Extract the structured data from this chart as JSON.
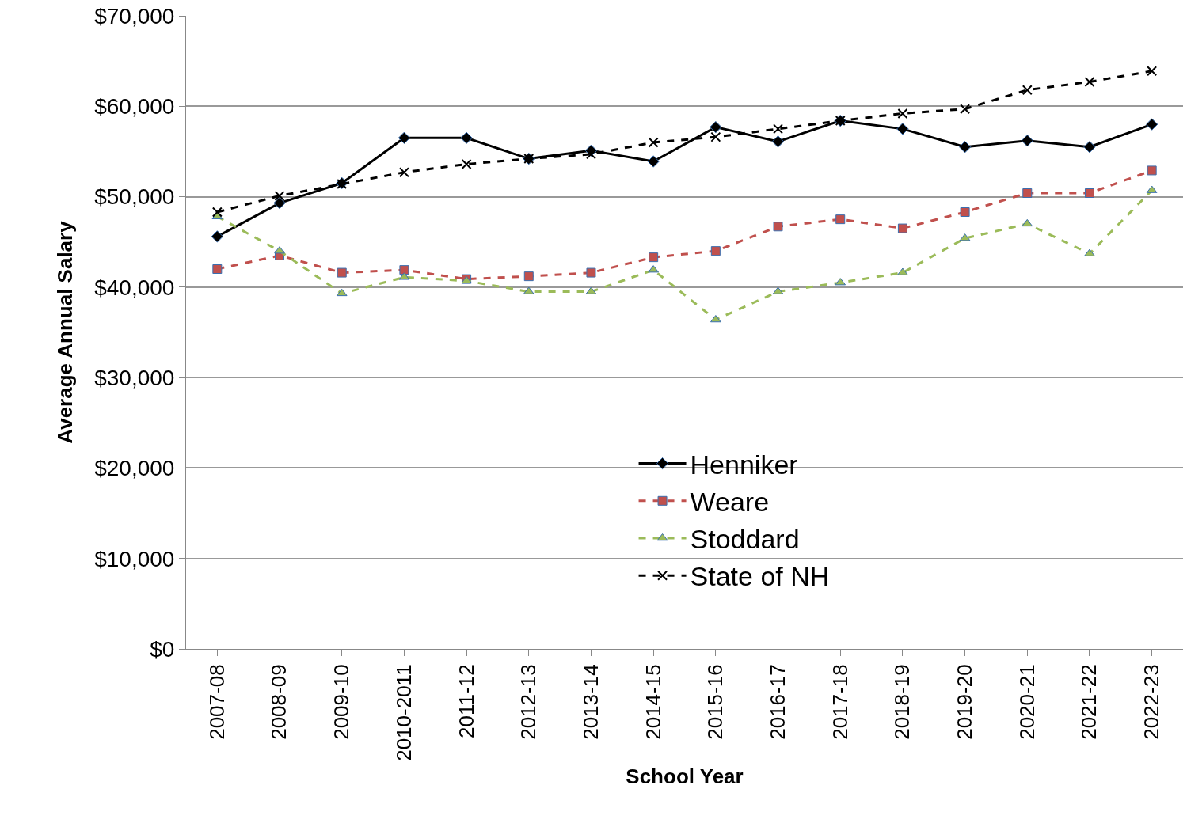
{
  "chart_data": {
    "type": "line",
    "xlabel": "School Year",
    "ylabel": "Average Annual Salary",
    "categories": [
      "2007-08",
      "2008-09",
      "2009-10",
      "2010-2011",
      "2011-12",
      "2012-13",
      "2013-14",
      "2014-15",
      "2015-16",
      "2016-17",
      "2017-18",
      "2018-19",
      "2019-20",
      "2020-21",
      "2021-22",
      "2022-23"
    ],
    "series": [
      {
        "name": "Henniker",
        "color": "#000000",
        "marker": "diamond",
        "line_style": "solid",
        "values": [
          45600,
          49300,
          51500,
          56500,
          56500,
          54200,
          55100,
          53900,
          57700,
          56100,
          58400,
          57500,
          55500,
          56200,
          55500,
          58000
        ]
      },
      {
        "name": "Weare",
        "color": "#c0504d",
        "marker": "square",
        "line_style": "dashed",
        "values": [
          42000,
          43500,
          41600,
          41900,
          40900,
          41200,
          41600,
          43300,
          44000,
          46700,
          47500,
          46500,
          48300,
          50400,
          50400,
          52900
        ]
      },
      {
        "name": "Stoddard",
        "color": "#9bbb59",
        "marker": "triangle",
        "line_style": "dashed",
        "values": [
          47800,
          44000,
          39300,
          41100,
          40700,
          39500,
          39500,
          41900,
          36400,
          39500,
          40500,
          41600,
          45400,
          47000,
          43700,
          50700
        ]
      },
      {
        "name": "State of NH",
        "color": "#000000",
        "marker": "cross",
        "line_style": "dotted",
        "values": [
          48300,
          50100,
          51400,
          52700,
          53600,
          54200,
          54700,
          56000,
          56600,
          57500,
          58400,
          59200,
          59700,
          61800,
          62700,
          63900
        ]
      }
    ],
    "ylim": [
      0,
      70000
    ],
    "yticks": [
      {
        "value": 0,
        "label": "$0"
      },
      {
        "value": 10000,
        "label": "$10,000"
      },
      {
        "value": 20000,
        "label": "$20,000"
      },
      {
        "value": 30000,
        "label": "$30,000"
      },
      {
        "value": 40000,
        "label": "$40,000"
      },
      {
        "value": 50000,
        "label": "$50,000"
      },
      {
        "value": 60000,
        "label": "$60,000"
      },
      {
        "value": 70000,
        "label": "$70,000"
      }
    ],
    "grid": "y",
    "legend": "bottom"
  }
}
